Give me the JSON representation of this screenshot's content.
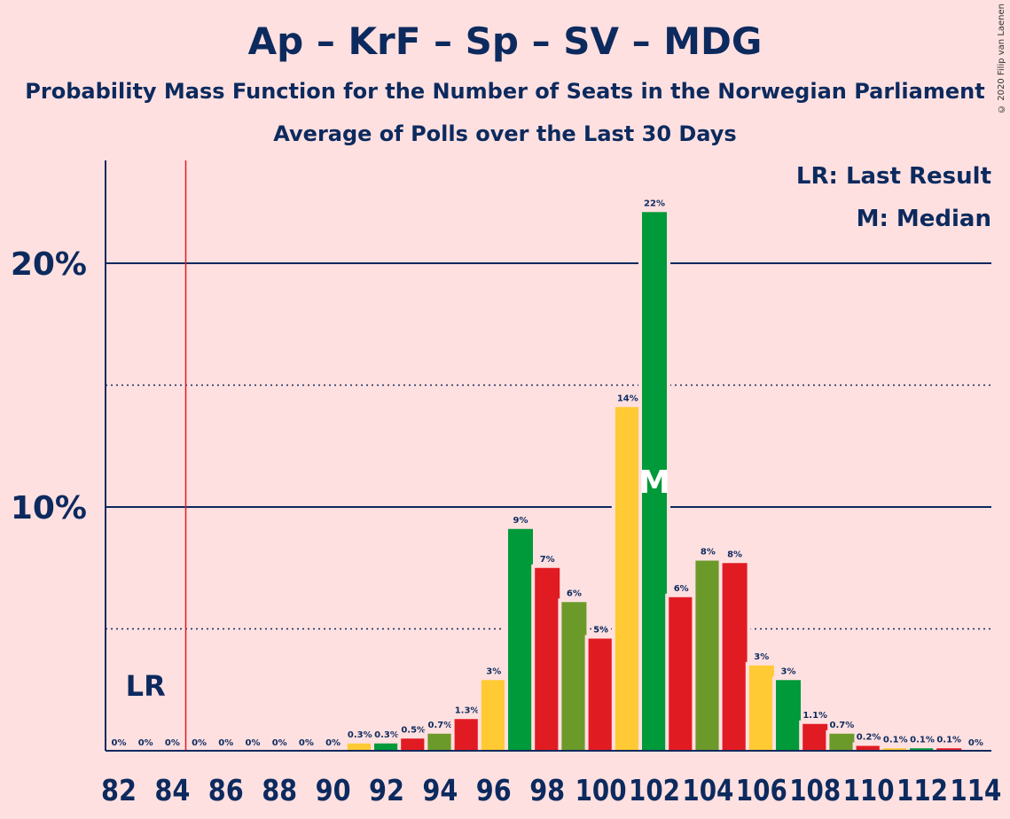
{
  "title": "Ap – KrF – Sp – SV – MDG",
  "subtitle": "Probability Mass Function for the Number of Seats in the Norwegian Parliament",
  "subtitle2": "Average of Polls over the Last 30 Days",
  "copyright": "© 2020 Filip van Laenen",
  "legend": {
    "lr": "LR: Last Result",
    "median": "M: Median"
  },
  "chart_data": {
    "type": "bar",
    "title": "Ap – KrF – Sp – SV – MDG",
    "xlabel": "",
    "ylabel": "",
    "ylim": [
      0,
      24
    ],
    "x": [
      82,
      83,
      84,
      85,
      86,
      87,
      88,
      89,
      90,
      91,
      92,
      93,
      94,
      95,
      96,
      97,
      98,
      99,
      100,
      101,
      102,
      103,
      104,
      105,
      106,
      107,
      108,
      109,
      110,
      111,
      112,
      113,
      114
    ],
    "values": [
      0,
      0,
      0,
      0,
      0,
      0,
      0,
      0,
      0,
      0.3,
      0.3,
      0.5,
      0.7,
      1.3,
      2.9,
      9.1,
      7.5,
      6.1,
      4.6,
      14.1,
      22.1,
      6.3,
      7.8,
      7.7,
      3.5,
      2.9,
      1.1,
      0.7,
      0.2,
      0.1,
      0.1,
      0.1,
      0
    ],
    "bar_labels": [
      "0%",
      "0%",
      "0%",
      "0%",
      "0%",
      "0%",
      "0%",
      "0%",
      "0%",
      "0.3%",
      "0.3%",
      "0.5%",
      "0.7%",
      "1.3%",
      "3%",
      "9%",
      "7%",
      "6%",
      "5%",
      "14%",
      "22%",
      "6%",
      "8%",
      "8%",
      "3%",
      "3%",
      "1.1%",
      "0.7%",
      "0.2%",
      "0.1%",
      "0.1%",
      "0.1%",
      "0%"
    ],
    "x_tick_labels": [
      "82",
      "84",
      "86",
      "88",
      "90",
      "92",
      "94",
      "96",
      "98",
      "100",
      "102",
      "104",
      "106",
      "108",
      "110",
      "112",
      "114"
    ],
    "y_tick_labels": [
      "10%",
      "20%"
    ],
    "major_gridlines": [
      10,
      20
    ],
    "minor_gridlines": [
      5,
      15
    ],
    "last_result": {
      "x": 84.5,
      "label": "LR"
    },
    "median": {
      "x": 102,
      "label": "M"
    },
    "colors": {
      "red": "#E11B22",
      "green": "#009A3A",
      "olive": "#6C9A2A",
      "yellow": "#FFCA33",
      "axis": "#0C2A5E",
      "last_result_line": "#E11B22",
      "background": "#FFE0E0"
    },
    "bar_color_cycle": [
      "yellow",
      "green",
      "red",
      "olive",
      "red"
    ]
  }
}
